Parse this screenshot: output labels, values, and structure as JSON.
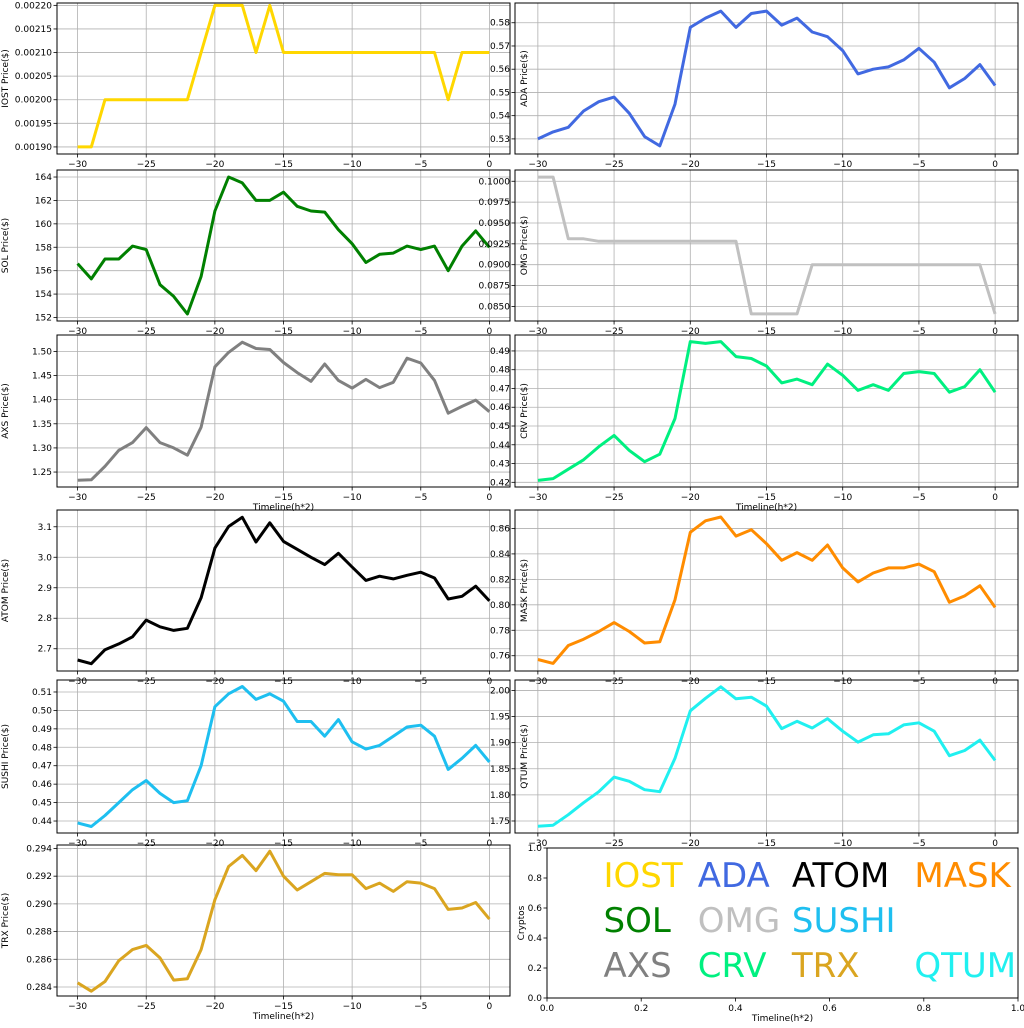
{
  "x_axis_label": "Timeline(h*2)",
  "legend_panel": {
    "ylabel": "Cryptos",
    "xlabel": "Timeline(h*2)",
    "xticks": [
      "0.0",
      "0.2",
      "0.4",
      "0.6",
      "0.8",
      "1.0"
    ],
    "yticks": [
      "0.0",
      "0.2",
      "0.4",
      "0.6",
      "0.8",
      "1.0"
    ],
    "entries": [
      {
        "text": "IOST",
        "color": "#FFD700",
        "x": 0.12,
        "y": 0.82
      },
      {
        "text": "ADA",
        "color": "#4169E1",
        "x": 0.32,
        "y": 0.82
      },
      {
        "text": "ATOM",
        "color": "#000000",
        "x": 0.52,
        "y": 0.82
      },
      {
        "text": "MASK",
        "color": "#FF8C00",
        "x": 0.78,
        "y": 0.82
      },
      {
        "text": "SOL",
        "color": "#008000",
        "x": 0.12,
        "y": 0.52
      },
      {
        "text": "OMG",
        "color": "#C0C0C0",
        "x": 0.32,
        "y": 0.52
      },
      {
        "text": "SUSHI",
        "color": "#1EBFF0",
        "x": 0.52,
        "y": 0.52
      },
      {
        "text": "AXS",
        "color": "#808080",
        "x": 0.12,
        "y": 0.22
      },
      {
        "text": "CRV",
        "color": "#00F080",
        "x": 0.32,
        "y": 0.22
      },
      {
        "text": "TRX",
        "color": "#DAA520",
        "x": 0.52,
        "y": 0.22
      },
      {
        "text": "QTUM",
        "color": "#20F0F0",
        "x": 0.78,
        "y": 0.22
      }
    ]
  },
  "chart_data": [
    {
      "type": "line",
      "name": "IOST",
      "ylabel": "IOST Price($)",
      "color": "#FFD700",
      "x": [
        -30,
        -29,
        -28,
        -27,
        -26,
        -25,
        -24,
        -23,
        -22,
        -21,
        -20,
        -19,
        -18,
        -17,
        -16,
        -15,
        -14,
        -13,
        -12,
        -11,
        -10,
        -9,
        -8,
        -7,
        -6,
        -5,
        -4,
        -3,
        -2,
        -1,
        0
      ],
      "values": [
        0.0019,
        0.0019,
        0.002,
        0.002,
        0.002,
        0.002,
        0.002,
        0.002,
        0.002,
        0.0021,
        0.0022,
        0.0022,
        0.0022,
        0.0021,
        0.0022,
        0.0021,
        0.0021,
        0.0021,
        0.0021,
        0.0021,
        0.0021,
        0.0021,
        0.0021,
        0.0021,
        0.0021,
        0.0021,
        0.0021,
        0.002,
        0.0021,
        0.0021,
        0.0021
      ],
      "xlim": [
        -31.5,
        1.5
      ],
      "ylim": [
        0.001885,
        0.002205
      ],
      "yticks": [
        "0.00190",
        "0.00195",
        "0.00200",
        "0.00205",
        "0.00210",
        "0.00215",
        "0.00220"
      ],
      "xticks": [
        "−30",
        "−25",
        "−20",
        "−15",
        "−10",
        "−5",
        "0"
      ],
      "xlabel": ""
    },
    {
      "type": "line",
      "name": "ADA",
      "ylabel": "ADA Price($)",
      "color": "#4169E1",
      "x": [
        -30,
        -29,
        -28,
        -27,
        -26,
        -25,
        -24,
        -23,
        -22,
        -21,
        -20,
        -19,
        -18,
        -17,
        -16,
        -15,
        -14,
        -13,
        -12,
        -11,
        -10,
        -9,
        -8,
        -7,
        -6,
        -5,
        -4,
        -3,
        -2,
        -1,
        0
      ],
      "values": [
        0.53,
        0.533,
        0.535,
        0.542,
        0.546,
        0.548,
        0.541,
        0.531,
        0.527,
        0.545,
        0.578,
        0.582,
        0.585,
        0.578,
        0.584,
        0.585,
        0.579,
        0.582,
        0.576,
        0.574,
        0.568,
        0.558,
        0.56,
        0.561,
        0.564,
        0.569,
        0.563,
        0.552,
        0.556,
        0.562,
        0.553
      ],
      "xlim": [
        -31.5,
        1.5
      ],
      "ylim": [
        0.5235,
        0.5885
      ],
      "yticks": [
        "0.53",
        "0.54",
        "0.55",
        "0.56",
        "0.57",
        "0.58"
      ],
      "xticks": [
        "−30",
        "−25",
        "−20",
        "−15",
        "−10",
        "−5",
        "0"
      ],
      "xlabel": ""
    },
    {
      "type": "line",
      "name": "SOL",
      "ylabel": "SOL Price($)",
      "color": "#008000",
      "x": [
        -30,
        -29,
        -28,
        -27,
        -26,
        -25,
        -24,
        -23,
        -22,
        -21,
        -20,
        -19,
        -18,
        -17,
        -16,
        -15,
        -14,
        -13,
        -12,
        -11,
        -10,
        -9,
        -8,
        -7,
        -6,
        -5,
        -4,
        -3,
        -2,
        -1,
        0
      ],
      "values": [
        156.6,
        155.3,
        157.0,
        157.0,
        158.1,
        157.8,
        154.8,
        153.8,
        152.3,
        155.5,
        161.1,
        164.0,
        163.5,
        162.0,
        162.0,
        162.7,
        161.5,
        161.1,
        161.0,
        159.5,
        158.3,
        156.7,
        157.4,
        157.5,
        158.1,
        157.8,
        158.1,
        156.0,
        158.1,
        159.4,
        158.0
      ],
      "xlim": [
        -31.5,
        1.5
      ],
      "ylim": [
        151.7,
        164.6
      ],
      "yticks": [
        "152",
        "154",
        "156",
        "158",
        "160",
        "162",
        "164"
      ],
      "xticks": [
        "−30",
        "−25",
        "−20",
        "−15",
        "−10",
        "−5",
        "0"
      ],
      "xlabel": ""
    },
    {
      "type": "line",
      "name": "OMG",
      "ylabel": "OMG Price($)",
      "color": "#C0C0C0",
      "x": [
        -30,
        -29,
        -28,
        -27,
        -26,
        -25,
        -24,
        -23,
        -22,
        -21,
        -20,
        -19,
        -18,
        -17,
        -16,
        -15,
        -14,
        -13,
        -12,
        -11,
        -10,
        -9,
        -8,
        -7,
        -6,
        -5,
        -4,
        -3,
        -2,
        -1,
        0
      ],
      "values": [
        0.1005,
        0.1005,
        0.0931,
        0.0931,
        0.0928,
        0.0928,
        0.0928,
        0.0928,
        0.0928,
        0.0928,
        0.0928,
        0.0928,
        0.0928,
        0.0928,
        0.0841,
        0.0841,
        0.0841,
        0.0841,
        0.09,
        0.09,
        0.09,
        0.09,
        0.09,
        0.09,
        0.09,
        0.09,
        0.09,
        0.09,
        0.09,
        0.09,
        0.0841
      ],
      "xlim": [
        -31.5,
        1.5
      ],
      "ylim": [
        0.08325,
        0.10135
      ],
      "yticks": [
        "0.0850",
        "0.0875",
        "0.0900",
        "0.0925",
        "0.0950",
        "0.0975",
        "0.1000"
      ],
      "xticks": [
        "−30",
        "−25",
        "−20",
        "−15",
        "−10",
        "−5",
        "0"
      ],
      "xlabel": ""
    },
    {
      "type": "line",
      "name": "AXS",
      "ylabel": "AXS Price($)",
      "color": "#808080",
      "x": [
        -30,
        -29,
        -28,
        -27,
        -26,
        -25,
        -24,
        -23,
        -22,
        -21,
        -20,
        -19,
        -18,
        -17,
        -16,
        -15,
        -14,
        -13,
        -12,
        -11,
        -10,
        -9,
        -8,
        -7,
        -6,
        -5,
        -4,
        -3,
        -2,
        -1,
        0
      ],
      "values": [
        1.233,
        1.234,
        1.262,
        1.295,
        1.311,
        1.342,
        1.311,
        1.3,
        1.285,
        1.343,
        1.468,
        1.498,
        1.519,
        1.506,
        1.504,
        1.477,
        1.456,
        1.438,
        1.474,
        1.44,
        1.424,
        1.442,
        1.425,
        1.436,
        1.486,
        1.476,
        1.44,
        1.372,
        1.386,
        1.399,
        1.375
      ],
      "xlim": [
        -31.5,
        1.5
      ],
      "ylim": [
        1.219,
        1.534
      ],
      "yticks": [
        "1.25",
        "1.30",
        "1.35",
        "1.40",
        "1.45",
        "1.50"
      ],
      "xticks": [
        "−30",
        "−25",
        "−20",
        "−15",
        "−10",
        "−5",
        "0"
      ],
      "xlabel": "Timeline(h*2)"
    },
    {
      "type": "line",
      "name": "CRV",
      "ylabel": "CRV Price($)",
      "color": "#00F080",
      "x": [
        -30,
        -29,
        -28,
        -27,
        -26,
        -25,
        -24,
        -23,
        -22,
        -21,
        -20,
        -19,
        -18,
        -17,
        -16,
        -15,
        -14,
        -13,
        -12,
        -11,
        -10,
        -9,
        -8,
        -7,
        -6,
        -5,
        -4,
        -3,
        -2,
        -1,
        0
      ],
      "values": [
        0.421,
        0.422,
        0.427,
        0.432,
        0.439,
        0.445,
        0.437,
        0.431,
        0.435,
        0.454,
        0.495,
        0.494,
        0.495,
        0.487,
        0.486,
        0.482,
        0.473,
        0.475,
        0.472,
        0.483,
        0.477,
        0.469,
        0.472,
        0.469,
        0.478,
        0.479,
        0.478,
        0.468,
        0.471,
        0.48,
        0.468
      ],
      "xlim": [
        -31.5,
        1.5
      ],
      "ylim": [
        0.4175,
        0.4985
      ],
      "yticks": [
        "0.42",
        "0.43",
        "0.44",
        "0.45",
        "0.46",
        "0.47",
        "0.48",
        "0.49"
      ],
      "xticks": [
        "−30",
        "−25",
        "−20",
        "−15",
        "−10",
        "−5",
        "0"
      ],
      "xlabel": "Timeline(h*2)"
    },
    {
      "type": "line",
      "name": "ATOM",
      "ylabel": "ATOM Price($)",
      "color": "#000000",
      "x": [
        -30,
        -29,
        -28,
        -27,
        -26,
        -25,
        -24,
        -23,
        -22,
        -21,
        -20,
        -19,
        -18,
        -17,
        -16,
        -15,
        -14,
        -13,
        -12,
        -11,
        -10,
        -9,
        -8,
        -7,
        -6,
        -5,
        -4,
        -3,
        -2,
        -1,
        0
      ],
      "values": [
        2.663,
        2.651,
        2.697,
        2.716,
        2.739,
        2.794,
        2.772,
        2.76,
        2.767,
        2.867,
        3.03,
        3.101,
        3.131,
        3.05,
        3.113,
        3.052,
        3.026,
        3.0,
        2.976,
        3.013,
        2.968,
        2.924,
        2.938,
        2.929,
        2.941,
        2.951,
        2.932,
        2.863,
        2.872,
        2.905,
        2.857
      ],
      "xlim": [
        -31.5,
        1.5
      ],
      "ylim": [
        2.627,
        3.155
      ],
      "yticks": [
        "2.7",
        "2.8",
        "2.9",
        "3.0",
        "3.1"
      ],
      "xticks": [
        "−30",
        "−25",
        "−20",
        "−15",
        "−10",
        "−5",
        "0"
      ],
      "xlabel": ""
    },
    {
      "type": "line",
      "name": "MASK",
      "ylabel": "MASK Price($)",
      "color": "#FF8C00",
      "x": [
        -30,
        -29,
        -28,
        -27,
        -26,
        -25,
        -24,
        -23,
        -22,
        -21,
        -20,
        -19,
        -18,
        -17,
        -16,
        -15,
        -14,
        -13,
        -12,
        -11,
        -10,
        -9,
        -8,
        -7,
        -6,
        -5,
        -4,
        -3,
        -2,
        -1,
        0
      ],
      "values": [
        0.757,
        0.754,
        0.768,
        0.773,
        0.779,
        0.786,
        0.779,
        0.77,
        0.771,
        0.804,
        0.857,
        0.866,
        0.869,
        0.854,
        0.859,
        0.848,
        0.835,
        0.841,
        0.835,
        0.847,
        0.829,
        0.818,
        0.825,
        0.829,
        0.829,
        0.832,
        0.826,
        0.802,
        0.807,
        0.815,
        0.798
      ],
      "xlim": [
        -31.5,
        1.5
      ],
      "ylim": [
        0.748,
        0.8745
      ],
      "yticks": [
        "0.76",
        "0.78",
        "0.80",
        "0.82",
        "0.84",
        "0.86"
      ],
      "xticks": [
        "−30",
        "−25",
        "−20",
        "−15",
        "−10",
        "−5",
        "0"
      ],
      "xlabel": ""
    },
    {
      "type": "line",
      "name": "SUSHI",
      "ylabel": "SUSHI Price($)",
      "color": "#1EBFF0",
      "x": [
        -30,
        -29,
        -28,
        -27,
        -26,
        -25,
        -24,
        -23,
        -22,
        -21,
        -20,
        -19,
        -18,
        -17,
        -16,
        -15,
        -14,
        -13,
        -12,
        -11,
        -10,
        -9,
        -8,
        -7,
        -6,
        -5,
        -4,
        -3,
        -2,
        -1,
        0
      ],
      "values": [
        0.439,
        0.437,
        0.443,
        0.45,
        0.457,
        0.462,
        0.455,
        0.45,
        0.451,
        0.47,
        0.502,
        0.509,
        0.513,
        0.506,
        0.509,
        0.505,
        0.494,
        0.494,
        0.486,
        0.495,
        0.483,
        0.479,
        0.481,
        0.486,
        0.491,
        0.492,
        0.486,
        0.468,
        0.474,
        0.481,
        0.472
      ],
      "xlim": [
        -31.5,
        1.5
      ],
      "ylim": [
        0.4335,
        0.5165
      ],
      "yticks": [
        "0.44",
        "0.45",
        "0.46",
        "0.47",
        "0.48",
        "0.49",
        "0.50",
        "0.51"
      ],
      "xticks": [
        "−30",
        "−25",
        "−20",
        "−15",
        "−10",
        "−5",
        "0"
      ],
      "xlabel": ""
    },
    {
      "type": "line",
      "name": "QTUM",
      "ylabel": "QTUM Price($)",
      "color": "#20F0F0",
      "x": [
        -30,
        -29,
        -28,
        -27,
        -26,
        -25,
        -24,
        -23,
        -22,
        -21,
        -20,
        -19,
        -18,
        -17,
        -16,
        -15,
        -14,
        -13,
        -12,
        -11,
        -10,
        -9,
        -8,
        -7,
        -6,
        -5,
        -4,
        -3,
        -2,
        -1,
        0
      ],
      "values": [
        1.74,
        1.742,
        1.762,
        1.785,
        1.806,
        1.834,
        1.826,
        1.81,
        1.806,
        1.87,
        1.961,
        1.985,
        2.007,
        1.984,
        1.987,
        1.97,
        1.927,
        1.941,
        1.928,
        1.946,
        1.922,
        1.901,
        1.915,
        1.917,
        1.934,
        1.938,
        1.922,
        1.875,
        1.885,
        1.905,
        1.866
      ],
      "xlim": [
        -31.5,
        1.5
      ],
      "ylim": [
        1.727,
        2.02
      ],
      "yticks": [
        "1.75",
        "1.80",
        "1.85",
        "1.90",
        "1.95",
        "2.00"
      ],
      "xticks": [
        "−30",
        "−25",
        "−20",
        "−15",
        "−10",
        "−5",
        "0"
      ],
      "xlabel": ""
    },
    {
      "type": "line",
      "name": "TRX",
      "ylabel": "TRX Price($)",
      "color": "#DAA520",
      "x": [
        -30,
        -29,
        -28,
        -27,
        -26,
        -25,
        -24,
        -23,
        -22,
        -21,
        -20,
        -19,
        -18,
        -17,
        -16,
        -15,
        -14,
        -13,
        -12,
        -11,
        -10,
        -9,
        -8,
        -7,
        -6,
        -5,
        -4,
        -3,
        -2,
        -1,
        0
      ],
      "values": [
        0.2843,
        0.2837,
        0.2844,
        0.2859,
        0.2867,
        0.287,
        0.2861,
        0.2845,
        0.2846,
        0.2867,
        0.2903,
        0.2927,
        0.2935,
        0.2924,
        0.2938,
        0.292,
        0.291,
        0.2916,
        0.2922,
        0.2921,
        0.2921,
        0.2911,
        0.2915,
        0.2909,
        0.2916,
        0.2915,
        0.2911,
        0.2896,
        0.2897,
        0.2901,
        0.2889
      ],
      "xlim": [
        -31.5,
        1.5
      ],
      "ylim": [
        0.28335,
        0.29425
      ],
      "yticks": [
        "0.284",
        "0.286",
        "0.288",
        "0.290",
        "0.292",
        "0.294"
      ],
      "xticks": [
        "−30",
        "−25",
        "−20",
        "−15",
        "−10",
        "−5",
        "0"
      ],
      "xlabel": "Timeline(h*2)"
    }
  ]
}
